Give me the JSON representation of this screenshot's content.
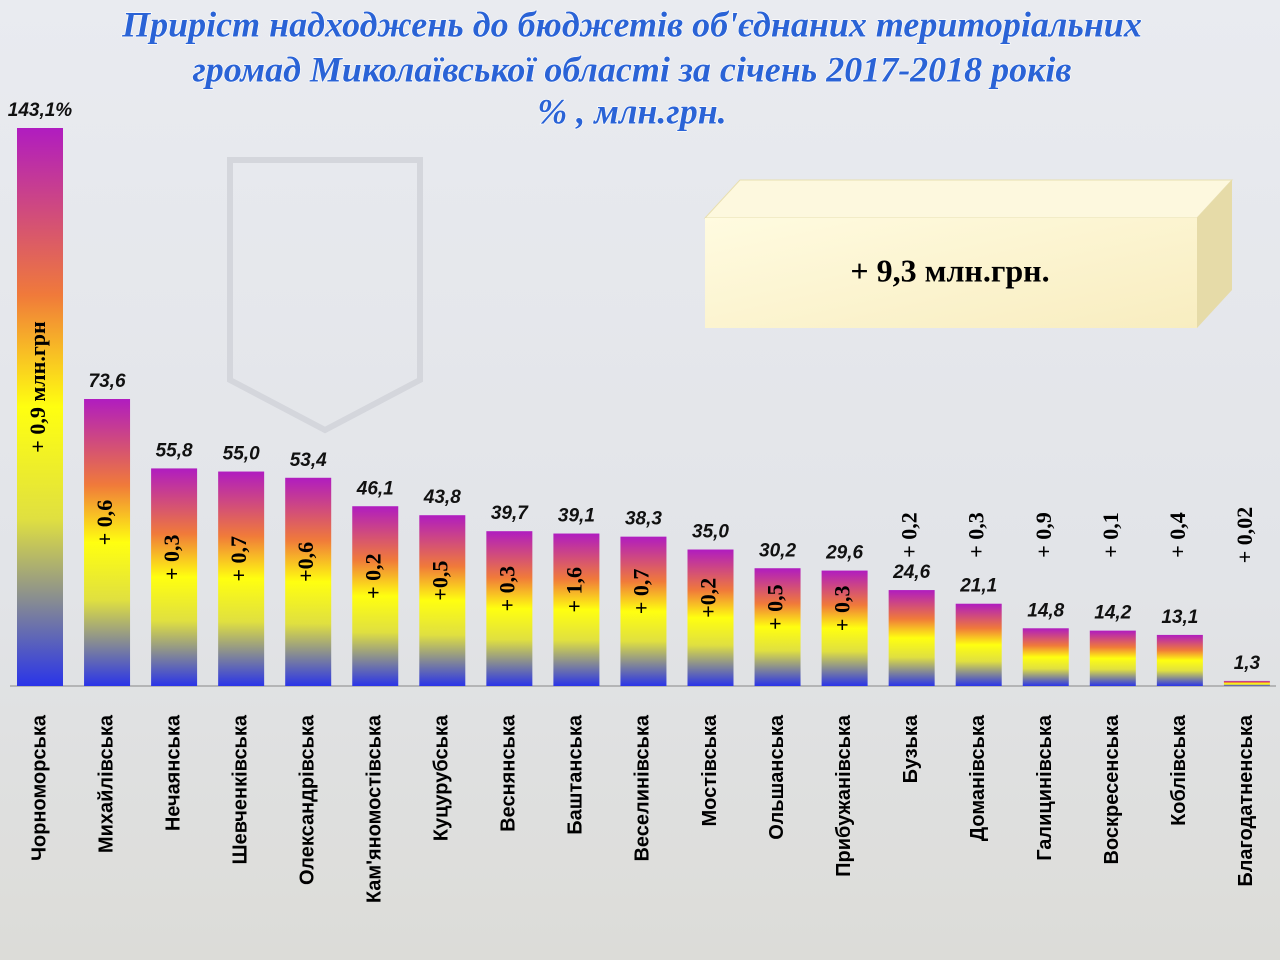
{
  "chart_data": {
    "type": "bar",
    "title_lines": [
      "Приріст надходжень до бюджетів об'єднаних територіальних",
      "громад Миколаївської області  за січень 2017-2018 років",
      "% , млн.грн."
    ],
    "total": "+ 9,3 млн.грн.",
    "categories": [
      "Чорноморська",
      "Михайлівська",
      "Нечаянська",
      "Шевченківська",
      "Олександрівська",
      "Кам'яномостівська",
      "Куцурубська",
      "Веснянська",
      "Баштанська",
      "Веселинівська",
      "Мостівська",
      "Ольшанська",
      "Прибужанівська",
      "Бузька",
      "Доманівська",
      "Галицинівська",
      "Воскресенська",
      "Коблівська",
      "Благодатненська"
    ],
    "values": [
      143.1,
      73.6,
      55.8,
      55.0,
      53.4,
      46.1,
      43.8,
      39.7,
      39.1,
      38.3,
      35.0,
      30.2,
      29.6,
      24.6,
      21.1,
      14.8,
      14.2,
      13.1,
      1.3
    ],
    "value_labels": [
      "143,1%",
      "73,6",
      "55,8",
      "55,0",
      "53,4",
      "46,1",
      "43,8",
      "39,7",
      "39,1",
      "38,3",
      "35,0",
      "30,2",
      "29,6",
      "24,6",
      "21,1",
      "14,8",
      "14,2",
      "13,1",
      "1,3"
    ],
    "increments": [
      "+ 0,9 млн.грн",
      "+ 0,6",
      "+ 0,3",
      "+ 0,7",
      "+0,6",
      "+ 0,2",
      "+0,5",
      "+ 0,3",
      "+ 1,6",
      "+ 0,7",
      "+0,2",
      "+ 0,5",
      "+ 0,3",
      "+ 0,2",
      "+ 0,3",
      "+ 0,9",
      "+ 0,1",
      "+ 0,4",
      "+ 0,02"
    ]
  }
}
